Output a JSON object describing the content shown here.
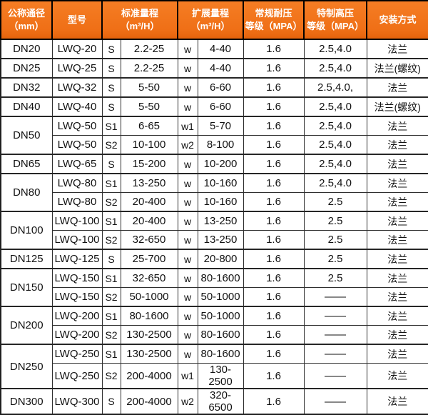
{
  "colors": {
    "header_background": "#F0711B",
    "header_text": "#FFFFFF",
    "grid_border": "#2E2E2E",
    "cell_text": "#111111",
    "row_background": "#FFFFFF"
  },
  "header": {
    "nominal_diameter": "公称通径\n（mm）",
    "model": "型号",
    "standard_range": "标准量程\n（m³/H）",
    "extended_range": "扩展量程\n（m³/H）",
    "normal_pressure": "常规耐压\n等级（MPA）",
    "high_pressure": "特制高压\n等级（MPA）",
    "installation": "安装方式"
  },
  "rows": [
    {
      "diameter": "DN20",
      "rowspan": 1,
      "model": "LWQ-20",
      "s": "S",
      "std": "2.2-25",
      "w": "w",
      "ext": "4-40",
      "normal": "1.6",
      "high": "2.5,4.0",
      "install": "法兰"
    },
    {
      "diameter": "DN25",
      "rowspan": 1,
      "model": "LWQ-25",
      "s": "S",
      "std": "2.2-25",
      "w": "w",
      "ext": "4-40",
      "normal": "1.6",
      "high": "2.5,4.0",
      "install": "法兰(螺纹)"
    },
    {
      "diameter": "DN32",
      "rowspan": 1,
      "model": "LWQ-32",
      "s": "S",
      "std": "5-50",
      "w": "w",
      "ext": "6-60",
      "normal": "1.6",
      "high": "2.5,4.0,",
      "install": "法兰"
    },
    {
      "diameter": "DN40",
      "rowspan": 1,
      "model": "LWQ-40",
      "s": "S",
      "std": "5-50",
      "w": "w",
      "ext": "6-60",
      "normal": "1.6",
      "high": "2.5,4.0",
      "install": "法兰(螺纹)"
    },
    {
      "diameter": "DN50",
      "rowspan": 2,
      "model": "LWQ-50",
      "s": "S1",
      "std": "6-65",
      "w": "w1",
      "ext": "5-70",
      "normal": "1.6",
      "high": "2.5,4.0",
      "install": "法兰"
    },
    {
      "diameter": null,
      "model": "LWQ-50",
      "s": "S2",
      "std": "10-100",
      "w": "w2",
      "ext": "8-100",
      "normal": "1.6",
      "high": "2.5,4.0",
      "install": "法兰"
    },
    {
      "diameter": "DN65",
      "rowspan": 1,
      "model": "LWQ-65",
      "s": "S",
      "std": "15-200",
      "w": "w",
      "ext": "10-200",
      "normal": "1.6",
      "high": "2.5,4.0",
      "install": "法兰"
    },
    {
      "diameter": "DN80",
      "rowspan": 2,
      "model": "LWQ-80",
      "s": "S1",
      "std": "13-250",
      "w": "w",
      "ext": "10-160",
      "normal": "1.6",
      "high": "2.5,4.0",
      "install": "法兰"
    },
    {
      "diameter": null,
      "model": "LWQ-80",
      "s": "S2",
      "std": "20-400",
      "w": "w",
      "ext": "10-160",
      "normal": "1.6",
      "high": "2.5",
      "install": "法兰"
    },
    {
      "diameter": "DN100",
      "rowspan": 2,
      "model": "LWQ-100",
      "s": "S1",
      "std": "20-400",
      "w": "w",
      "ext": "13-250",
      "normal": "1.6",
      "high": "2.5",
      "install": "法兰"
    },
    {
      "diameter": null,
      "model": "LWQ-100",
      "s": "S2",
      "std": "32-650",
      "w": "w",
      "ext": "13-250",
      "normal": "1.6",
      "high": "2.5",
      "install": "法兰"
    },
    {
      "diameter": "DN125",
      "rowspan": 1,
      "model": "LWQ-125",
      "s": "S",
      "std": "25-700",
      "w": "w",
      "ext": "20-800",
      "normal": "1.6",
      "high": "2.5",
      "install": "法兰"
    },
    {
      "diameter": "DN150",
      "rowspan": 2,
      "model": "LWQ-150",
      "s": "S1",
      "std": "32-650",
      "w": "w",
      "ext": "80-1600",
      "normal": "1.6",
      "high": "2.5",
      "install": "法兰"
    },
    {
      "diameter": null,
      "model": "LWQ-150",
      "s": "S2",
      "std": "50-1000",
      "w": "w",
      "ext": "50-1000",
      "normal": "1.6",
      "high": "——",
      "install": "法兰"
    },
    {
      "diameter": "DN200",
      "rowspan": 2,
      "model": "LWQ-200",
      "s": "S1",
      "std": "80-1600",
      "w": "w",
      "ext": "50-1000",
      "normal": "1.6",
      "high": "——",
      "install": "法兰"
    },
    {
      "diameter": null,
      "model": "LWQ-200",
      "s": "S2",
      "std": "130-2500",
      "w": "w",
      "ext": "80-1600",
      "normal": "1.6",
      "high": "——",
      "install": "法兰"
    },
    {
      "diameter": "DN250",
      "rowspan": 2,
      "model": "LWQ-250",
      "s": "S1",
      "std": "130-2500",
      "w": "w",
      "ext": "80-1600",
      "normal": "1.6",
      "high": "——",
      "install": "法兰"
    },
    {
      "diameter": null,
      "model": "LWQ-250",
      "s": "S2",
      "std": "200-4000",
      "w": "w1",
      "ext": "130-2500",
      "normal": "1.6",
      "high": "——",
      "install": "法兰"
    },
    {
      "diameter": "DN300",
      "rowspan": 1,
      "model": "LWQ-300",
      "s": "S",
      "std": "200-4000",
      "w": "w2",
      "ext": "320-6500",
      "normal": "1.6",
      "high": "——",
      "install": "法兰"
    }
  ]
}
